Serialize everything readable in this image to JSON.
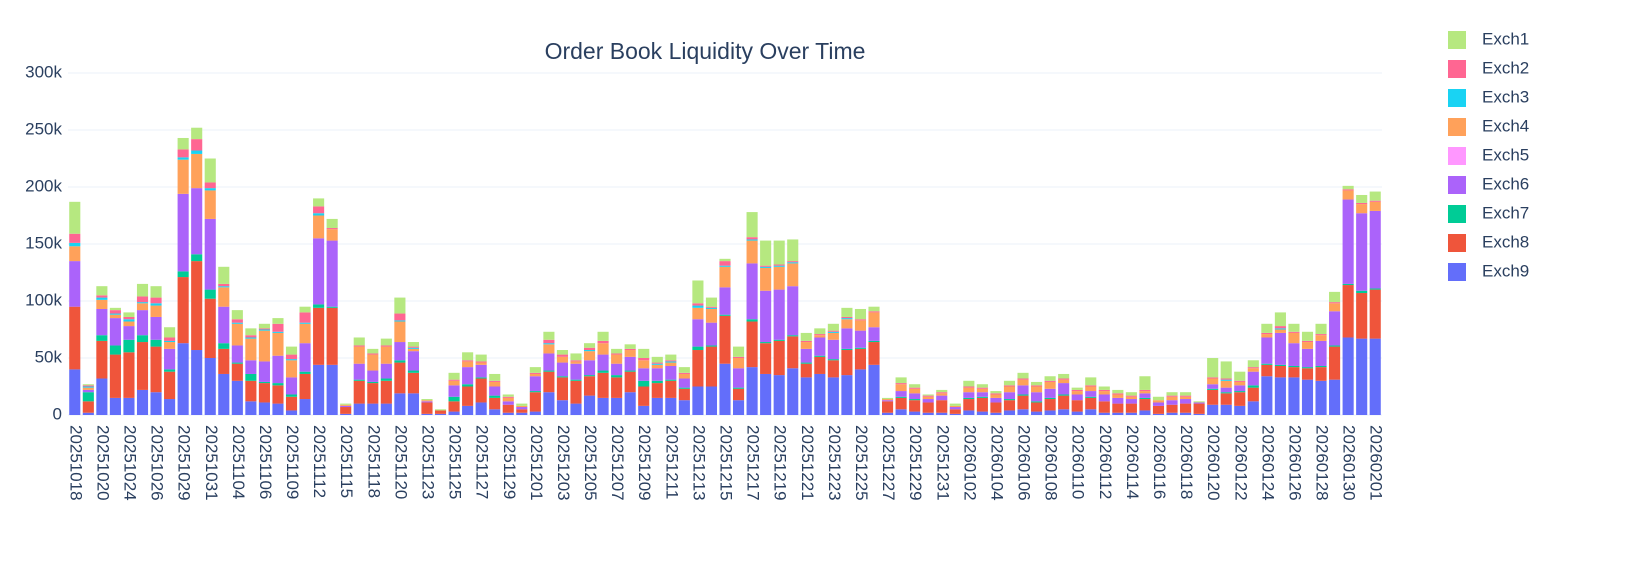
{
  "chart_data": {
    "type": "bar",
    "stacked": true,
    "title": "Order Book Liquidity Over Time",
    "categories": [
      "20251018",
      null,
      "20251020",
      null,
      "20251024",
      null,
      "20251026",
      null,
      "20251029",
      null,
      "20251031",
      null,
      "20251104",
      null,
      "20251106",
      null,
      "20251109",
      null,
      "20251112",
      null,
      "20251115",
      null,
      "20251118",
      null,
      "20251120",
      null,
      "20251123",
      null,
      "20251125",
      null,
      "20251127",
      null,
      "20251129",
      null,
      "20251201",
      null,
      "20251203",
      null,
      "20251205",
      null,
      "20251207",
      null,
      "20251209",
      null,
      "20251211",
      null,
      "20251213",
      null,
      "20251215",
      null,
      "20251217",
      null,
      "20251219",
      null,
      "20251221",
      null,
      "20251223",
      null,
      "20251225",
      null,
      "20251227",
      null,
      "20251229",
      null,
      "20251231",
      null,
      "20260102",
      null,
      "20260104",
      null,
      "20260106",
      null,
      "20260108",
      null,
      "20260110",
      null,
      "20260112",
      null,
      "20260114",
      null,
      "20260116",
      null,
      "20260118",
      null,
      "20260120",
      null,
      "20260122",
      null,
      "20260124",
      null,
      "20260126",
      null,
      "20260128",
      null,
      "20260130",
      null,
      "20260201"
    ],
    "series": [
      {
        "name": "Exch1",
        "color": "#b6e880",
        "values": [
          28000,
          1000,
          8000,
          2000,
          4000,
          11000,
          10000,
          9000,
          10000,
          10000,
          21000,
          15000,
          8000,
          6000,
          4000,
          5000,
          7000,
          5000,
          7000,
          8000,
          1000,
          7000,
          4000,
          6000,
          14000,
          4000,
          1000,
          1000,
          6000,
          7000,
          6000,
          6000,
          2000,
          2000,
          5000,
          7000,
          4000,
          6000,
          4000,
          8000,
          4000,
          4000,
          8000,
          5000,
          5000,
          5000,
          20000,
          8000,
          2000,
          9000,
          22000,
          22000,
          21000,
          19000,
          7000,
          5000,
          6000,
          8000,
          9000,
          4000,
          1000,
          5000,
          3000,
          1000,
          2000,
          2000,
          5000,
          3000,
          2000,
          4000,
          5000,
          3000,
          4000,
          4000,
          2000,
          7000,
          3000,
          3000,
          3000,
          12000,
          3000,
          3000,
          3000,
          1000,
          17000,
          15000,
          8000,
          6000,
          8000,
          12000,
          7000,
          8000,
          9000,
          9000,
          3000,
          7000,
          8000
        ]
      },
      {
        "name": "Exch2",
        "color": "#ff6692",
        "values": [
          8000,
          1000,
          2000,
          3000,
          2000,
          5000,
          5000,
          3000,
          7000,
          10000,
          5000,
          2000,
          3000,
          2000,
          1000,
          7000,
          4000,
          9000,
          6000,
          1000,
          0,
          1000,
          1000,
          1000,
          6000,
          1000,
          0,
          0,
          1000,
          1000,
          1000,
          1000,
          1000,
          0,
          1000,
          3000,
          2000,
          1000,
          2000,
          2000,
          1000,
          1000,
          2000,
          1000,
          1000,
          1000,
          2000,
          1000,
          4000,
          1000,
          2000,
          1000,
          1000,
          1000,
          1000,
          1000,
          1000,
          1000,
          1000,
          1000,
          0,
          1000,
          1000,
          1000,
          1000,
          0,
          1000,
          1000,
          1000,
          1000,
          1000,
          1000,
          1000,
          1000,
          1000,
          1000,
          1000,
          1000,
          1000,
          1000,
          0,
          1000,
          1000,
          0,
          1000,
          1000,
          1000,
          1000,
          1000,
          2000,
          1000,
          1000,
          1000,
          1000,
          1000,
          1000,
          1000
        ]
      },
      {
        "name": "Exch3",
        "color": "#19d3f3",
        "values": [
          3000,
          1000,
          2000,
          1000,
          2000,
          1000,
          2000,
          1000,
          2000,
          3000,
          2000,
          1000,
          1000,
          1000,
          1000,
          1000,
          1000,
          1000,
          2000,
          0,
          0,
          0,
          0,
          0,
          1000,
          1000,
          0,
          0,
          0,
          0,
          0,
          0,
          0,
          0,
          0,
          1000,
          0,
          0,
          1000,
          0,
          0,
          0,
          0,
          1000,
          1000,
          0,
          2000,
          1000,
          1000,
          0,
          1000,
          1000,
          1000,
          1000,
          0,
          0,
          1000,
          1000,
          0,
          0,
          0,
          0,
          0,
          0,
          0,
          0,
          0,
          0,
          0,
          0,
          0,
          0,
          0,
          0,
          0,
          0,
          0,
          0,
          0,
          0,
          0,
          0,
          0,
          0,
          0,
          1000,
          0,
          0,
          0,
          1000,
          0,
          0,
          0,
          0,
          0,
          0,
          0
        ]
      },
      {
        "name": "Exch4",
        "color": "#ffa15a",
        "values": [
          13000,
          2000,
          8000,
          3000,
          4000,
          6000,
          10000,
          6000,
          30000,
          30000,
          25000,
          17000,
          19000,
          19000,
          27000,
          20000,
          15000,
          17000,
          20000,
          10000,
          1000,
          15000,
          14000,
          15000,
          18000,
          2000,
          1000,
          0,
          4000,
          5000,
          2000,
          4000,
          3000,
          1000,
          2000,
          8000,
          5000,
          2000,
          8000,
          10000,
          8000,
          6000,
          7000,
          3000,
          3000,
          4000,
          10000,
          12000,
          18000,
          9000,
          20000,
          20000,
          20000,
          20000,
          6000,
          2000,
          6000,
          8000,
          9000,
          13000,
          1000,
          6000,
          4000,
          2000,
          2000,
          1000,
          4000,
          3000,
          3000,
          5000,
          5000,
          5000,
          6000,
          3000,
          3000,
          4000,
          3000,
          3000,
          2000,
          2000,
          2000,
          3000,
          2000,
          0,
          5000,
          6000,
          3000,
          3000,
          3000,
          3000,
          9000,
          6000,
          5000,
          7000,
          8000,
          8000,
          8000
        ]
      },
      {
        "name": "Exch5",
        "color": "#ff97ff",
        "values": [
          0,
          0,
          0,
          0,
          0,
          0,
          0,
          0,
          0,
          0,
          0,
          0,
          0,
          0,
          0,
          0,
          0,
          0,
          0,
          0,
          0,
          0,
          0,
          0,
          0,
          0,
          0,
          0,
          0,
          0,
          0,
          0,
          0,
          0,
          0,
          0,
          0,
          0,
          0,
          0,
          0,
          0,
          0,
          0,
          0,
          0,
          0,
          0,
          0,
          0,
          0,
          0,
          0,
          0,
          0,
          0,
          0,
          0,
          0,
          0,
          0,
          0,
          0,
          0,
          0,
          0,
          0,
          0,
          0,
          0,
          0,
          0,
          0,
          0,
          0,
          0,
          0,
          0,
          0,
          0,
          0,
          0,
          0,
          0,
          0,
          0,
          0,
          0,
          0,
          0,
          0,
          0,
          0,
          0,
          0,
          0,
          0
        ]
      },
      {
        "name": "Exch6",
        "color": "#ab63fa",
        "values": [
          40000,
          2000,
          23000,
          24000,
          12000,
          22000,
          20000,
          18000,
          68000,
          58000,
          62000,
          32000,
          15000,
          12000,
          18000,
          24000,
          15000,
          25000,
          58000,
          58000,
          1000,
          14000,
          10000,
          13000,
          16000,
          17000,
          1000,
          0,
          10000,
          15000,
          11000,
          8000,
          3000,
          2000,
          13000,
          15000,
          12000,
          14000,
          13000,
          14000,
          10000,
          12000,
          11000,
          11000,
          12000,
          8000,
          24000,
          20000,
          24000,
          17000,
          49000,
          45000,
          44000,
          43000,
          12000,
          16000,
          17000,
          18000,
          15000,
          12000,
          1000,
          5000,
          5000,
          3000,
          4000,
          2000,
          5000,
          4000,
          4000,
          6000,
          8000,
          8000,
          8000,
          10000,
          5000,
          5000,
          6000,
          5000,
          4000,
          4000,
          3000,
          4000,
          4000,
          1000,
          4000,
          4000,
          5000,
          12000,
          23000,
          28000,
          20000,
          16000,
          22000,
          30000,
          74000,
          68000,
          68000
        ]
      },
      {
        "name": "Exch7",
        "color": "#00cc96",
        "values": [
          0,
          8000,
          5000,
          8000,
          11000,
          6000,
          6000,
          2000,
          5000,
          6000,
          8000,
          5000,
          1000,
          6000,
          1000,
          2000,
          2000,
          2000,
          3000,
          1000,
          0,
          1000,
          1000,
          2000,
          2000,
          2000,
          0,
          0,
          4000,
          2000,
          1000,
          2000,
          0,
          0,
          1000,
          1000,
          1000,
          1000,
          1000,
          2000,
          2000,
          1000,
          5000,
          2000,
          1000,
          1000,
          3000,
          1000,
          1000,
          1000,
          2000,
          1000,
          1000,
          1000,
          1000,
          1000,
          1000,
          1000,
          1000,
          1000,
          0,
          1000,
          1000,
          0,
          0,
          0,
          1000,
          1000,
          0,
          1000,
          1000,
          1000,
          1000,
          1000,
          0,
          1000,
          0,
          0,
          0,
          1000,
          0,
          0,
          0,
          0,
          1000,
          1000,
          1000,
          2000,
          1000,
          1000,
          1000,
          1000,
          1000,
          1000,
          1000,
          2000,
          1000
        ]
      },
      {
        "name": "Exch8",
        "color": "#ef553b",
        "values": [
          55000,
          10000,
          33000,
          38000,
          40000,
          42000,
          40000,
          24000,
          58000,
          78000,
          52000,
          22000,
          15000,
          18000,
          17000,
          16000,
          12000,
          22000,
          50000,
          50000,
          6000,
          20000,
          18000,
          20000,
          27000,
          18000,
          10000,
          3000,
          9000,
          17000,
          21000,
          10000,
          7000,
          3000,
          17000,
          18000,
          20000,
          20000,
          17000,
          22000,
          18000,
          18000,
          17000,
          13000,
          15000,
          10000,
          32000,
          35000,
          42000,
          10000,
          40000,
          27000,
          30000,
          28000,
          12000,
          15000,
          15000,
          22000,
          18000,
          20000,
          10000,
          10000,
          10000,
          9000,
          11000,
          4000,
          10000,
          12000,
          9000,
          9000,
          12000,
          8000,
          10000,
          12000,
          10000,
          10000,
          10000,
          8000,
          8000,
          10000,
          7000,
          7000,
          8000,
          9000,
          13000,
          10000,
          12000,
          12000,
          10000,
          10000,
          9000,
          10000,
          12000,
          29000,
          46000,
          40000,
          43000
        ]
      },
      {
        "name": "Exch9",
        "color": "#636efa",
        "values": [
          40000,
          2000,
          32000,
          15000,
          15000,
          22000,
          20000,
          14000,
          63000,
          57000,
          50000,
          36000,
          30000,
          12000,
          11000,
          10000,
          4000,
          14000,
          44000,
          44000,
          1000,
          10000,
          10000,
          10000,
          19000,
          19000,
          1000,
          1000,
          3000,
          8000,
          11000,
          5000,
          2000,
          2000,
          3000,
          20000,
          13000,
          10000,
          17000,
          15000,
          15000,
          20000,
          8000,
          15000,
          15000,
          13000,
          25000,
          25000,
          45000,
          13000,
          42000,
          36000,
          35000,
          41000,
          33000,
          36000,
          33000,
          35000,
          40000,
          44000,
          2000,
          5000,
          3000,
          2000,
          2000,
          1000,
          4000,
          3000,
          2000,
          4000,
          5000,
          3000,
          4000,
          5000,
          3000,
          5000,
          2000,
          2000,
          2000,
          4000,
          1000,
          2000,
          2000,
          1000,
          9000,
          9000,
          8000,
          12000,
          34000,
          33000,
          33000,
          31000,
          30000,
          31000,
          68000,
          67000,
          67000
        ]
      }
    ],
    "ylim": [
      0,
      300000
    ],
    "yticks": [
      0,
      {
        "value": 50000,
        "label": "50k"
      },
      {
        "value": 100000,
        "label": "100k"
      },
      {
        "value": 150000,
        "label": "150k"
      },
      {
        "value": 200000,
        "label": "200k"
      },
      {
        "value": 250000,
        "label": "250k"
      },
      {
        "value": 300000,
        "label": "300k"
      }
    ],
    "grid": true,
    "legend": "right"
  }
}
